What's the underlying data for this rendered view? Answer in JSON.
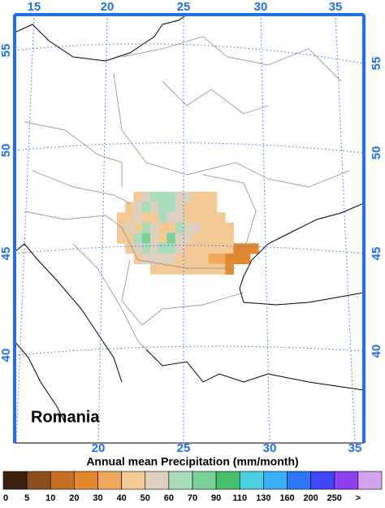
{
  "map": {
    "title": "Annual mean Precipitation (mm/month)",
    "region_label": "Romania",
    "top_labels": [
      15,
      20,
      25,
      30,
      35
    ],
    "bottom_labels": [
      20,
      25,
      30,
      35
    ],
    "left_labels": [
      55,
      50,
      45,
      40
    ],
    "right_labels": [
      55,
      50,
      45,
      40
    ],
    "colorbar": {
      "labels": [
        0,
        5,
        10,
        20,
        30,
        40,
        50,
        60,
        70,
        90,
        110,
        130,
        160,
        200,
        250,
        ">"
      ],
      "colors": [
        "#3b2210",
        "#8b4f1e",
        "#c56f22",
        "#e3892f",
        "#f0a85c",
        "#f2c994",
        "#ddd0bf",
        "#a9dcbd",
        "#79d199",
        "#45bf6a",
        "#4ccfe0",
        "#37aef5",
        "#2b76f5",
        "#3f45f5",
        "#8c3ff0",
        "#d2a4f0"
      ]
    },
    "precip": {
      "lon0": 21,
      "lat0": 48,
      "step": 0.5,
      "values": [
        [
          null,
          null,
          45,
          50,
          65,
          60,
          65,
          55,
          55,
          45,
          45,
          45,
          null,
          null,
          null,
          null,
          null
        ],
        [
          null,
          45,
          50,
          60,
          55,
          65,
          60,
          50,
          45,
          45,
          45,
          45,
          null,
          null,
          null,
          null,
          null
        ],
        [
          40,
          45,
          55,
          45,
          45,
          60,
          55,
          55,
          45,
          45,
          45,
          45,
          40,
          null,
          null,
          null,
          null
        ],
        [
          40,
          50,
          45,
          65,
          55,
          40,
          45,
          65,
          55,
          55,
          45,
          45,
          40,
          40,
          null,
          null,
          null
        ],
        [
          40,
          45,
          65,
          70,
          55,
          45,
          70,
          55,
          55,
          45,
          45,
          45,
          40,
          40,
          null,
          null,
          null
        ],
        [
          null,
          45,
          55,
          65,
          55,
          65,
          60,
          55,
          45,
          45,
          45,
          40,
          40,
          40,
          25,
          25,
          25
        ],
        [
          null,
          null,
          45,
          55,
          55,
          55,
          50,
          40,
          40,
          40,
          40,
          35,
          35,
          25,
          25,
          25,
          null
        ],
        [
          null,
          null,
          null,
          null,
          40,
          40,
          40,
          40,
          40,
          40,
          40,
          40,
          40,
          25,
          null,
          null,
          null
        ]
      ]
    }
  }
}
